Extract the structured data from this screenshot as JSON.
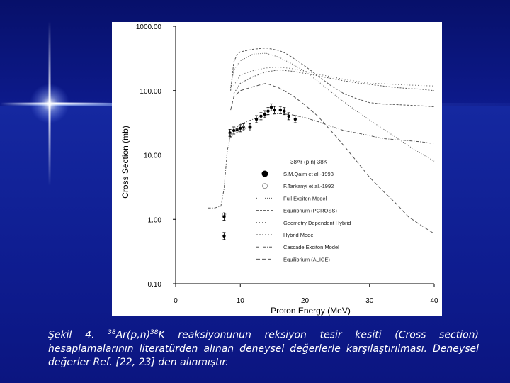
{
  "caption": {
    "label": "Şekil 4.",
    "iso_a_mass": "38",
    "iso_a_rest": "Ar(p,n)",
    "iso_b_mass": "38",
    "iso_b_rest": "K",
    "text": "reaksiyonunun reksiyon tesir kesiti (Cross section) hesaplamalarının literatürden alınan deneysel değerlerle karşılaştırılması. Deneysel değerler Ref. [22, 23] den alınmıştır."
  },
  "chart_data": {
    "type": "scatter",
    "xlabel": "Proton Energy (MeV)",
    "ylabel": "Cross Section (mb)",
    "xlim": [
      0,
      40
    ],
    "ylim": [
      0.1,
      1000
    ],
    "yscale": "log",
    "xticks": [
      0,
      10,
      20,
      30,
      40
    ],
    "xtick_labels": [
      "0",
      "10",
      "20",
      "30",
      "40"
    ],
    "yticks": [
      0.1,
      1,
      10,
      100,
      1000
    ],
    "ytick_labels": [
      "0.10",
      "1.00",
      "10.00",
      "100.00",
      "1000.00"
    ],
    "grid": false,
    "legend_position": "right",
    "legend_title": "38Ar (p,n) 38K",
    "series": [
      {
        "name": "S.M.Qaim et al.-1993",
        "kind": "points",
        "marker": "filled-circle",
        "x": [
          7.5,
          7.5,
          8.4,
          9.0,
          9.5,
          10.0,
          10.5,
          11.5,
          12.5,
          13.2,
          13.8,
          14.3,
          14.8,
          15.3,
          16.2,
          16.8,
          17.5,
          18.5
        ],
        "y": [
          0.55,
          1.1,
          22,
          24,
          25,
          26,
          27,
          27,
          36,
          40,
          43,
          48,
          55,
          50,
          50,
          48,
          40,
          36
        ]
      },
      {
        "name": "F.Tarkanyi et al.-1992",
        "kind": "points",
        "marker": "open-circle",
        "x": [
          7.5,
          8.5,
          9.5,
          10.5,
          11.5
        ],
        "y": [
          1.2,
          20,
          24,
          26,
          27
        ]
      },
      {
        "name": "Full Exciton Model",
        "kind": "line",
        "dash": "1 2",
        "x": [
          8.5,
          9,
          10,
          12,
          14,
          16,
          18,
          20,
          22,
          25,
          28,
          31,
          34,
          37,
          40
        ],
        "y": [
          110,
          210,
          290,
          370,
          380,
          330,
          260,
          200,
          140,
          80,
          48,
          30,
          19,
          12,
          8
        ]
      },
      {
        "name": "Equilibrium (PCROSS)",
        "kind": "line",
        "dash": "3 2",
        "x": [
          8.5,
          9,
          9.5,
          10,
          11,
          12,
          13,
          14,
          15,
          16,
          17,
          18,
          20,
          22,
          24,
          26,
          28,
          30,
          32,
          35,
          38,
          40
        ],
        "y": [
          100,
          280,
          360,
          400,
          420,
          440,
          450,
          460,
          440,
          420,
          380,
          330,
          240,
          170,
          120,
          90,
          75,
          65,
          62,
          60,
          58,
          56
        ]
      },
      {
        "name": "Geometry Dependent Hybrid",
        "kind": "line",
        "dash": "1 3",
        "x": [
          9,
          10,
          12,
          14,
          16,
          18,
          20,
          22,
          24,
          26,
          28,
          30,
          32,
          34,
          36,
          38,
          40
        ],
        "y": [
          120,
          175,
          205,
          225,
          232,
          220,
          200,
          180,
          165,
          150,
          140,
          130,
          128,
          125,
          122,
          120,
          118
        ]
      },
      {
        "name": "Hybrid Model",
        "kind": "line",
        "dash": "2 2",
        "x": [
          9,
          10,
          12,
          14,
          16,
          18,
          20,
          22,
          24,
          26,
          28,
          30,
          32,
          34,
          36,
          38,
          40
        ],
        "y": [
          90,
          130,
          165,
          195,
          210,
          200,
          185,
          170,
          155,
          142,
          132,
          125,
          118,
          112,
          108,
          105,
          100
        ]
      },
      {
        "name": "Cascade Exciton Model",
        "kind": "line",
        "dash": "4 2 1 2",
        "x": [
          5,
          6,
          7,
          7.5,
          8,
          8.5,
          9,
          10,
          12,
          14,
          16,
          18,
          20,
          22,
          24,
          26,
          28,
          30,
          32,
          35,
          38,
          40
        ],
        "y": [
          1.5,
          1.5,
          1.6,
          3,
          12,
          20,
          25,
          30,
          36,
          42,
          44,
          42,
          38,
          33,
          28,
          24,
          22,
          20,
          18,
          17,
          16,
          15
        ]
      },
      {
        "name": "Equilibrium (ALICE)",
        "kind": "line",
        "dash": "5 3",
        "x": [
          8.5,
          9,
          10,
          12,
          14,
          16,
          18,
          20,
          22,
          24,
          26,
          28,
          30,
          32,
          34,
          36,
          38,
          40
        ],
        "y": [
          50,
          80,
          100,
          115,
          130,
          110,
          85,
          60,
          40,
          24,
          14,
          8,
          4.5,
          2.8,
          1.8,
          1.1,
          0.8,
          0.6
        ]
      }
    ],
    "colors": {
      "axes": "#000000",
      "points": "#000000",
      "lines": "#555555",
      "figure_background": "#ffffff",
      "slide_background": "#0b1580",
      "caption_text": "#ffffff"
    }
  }
}
